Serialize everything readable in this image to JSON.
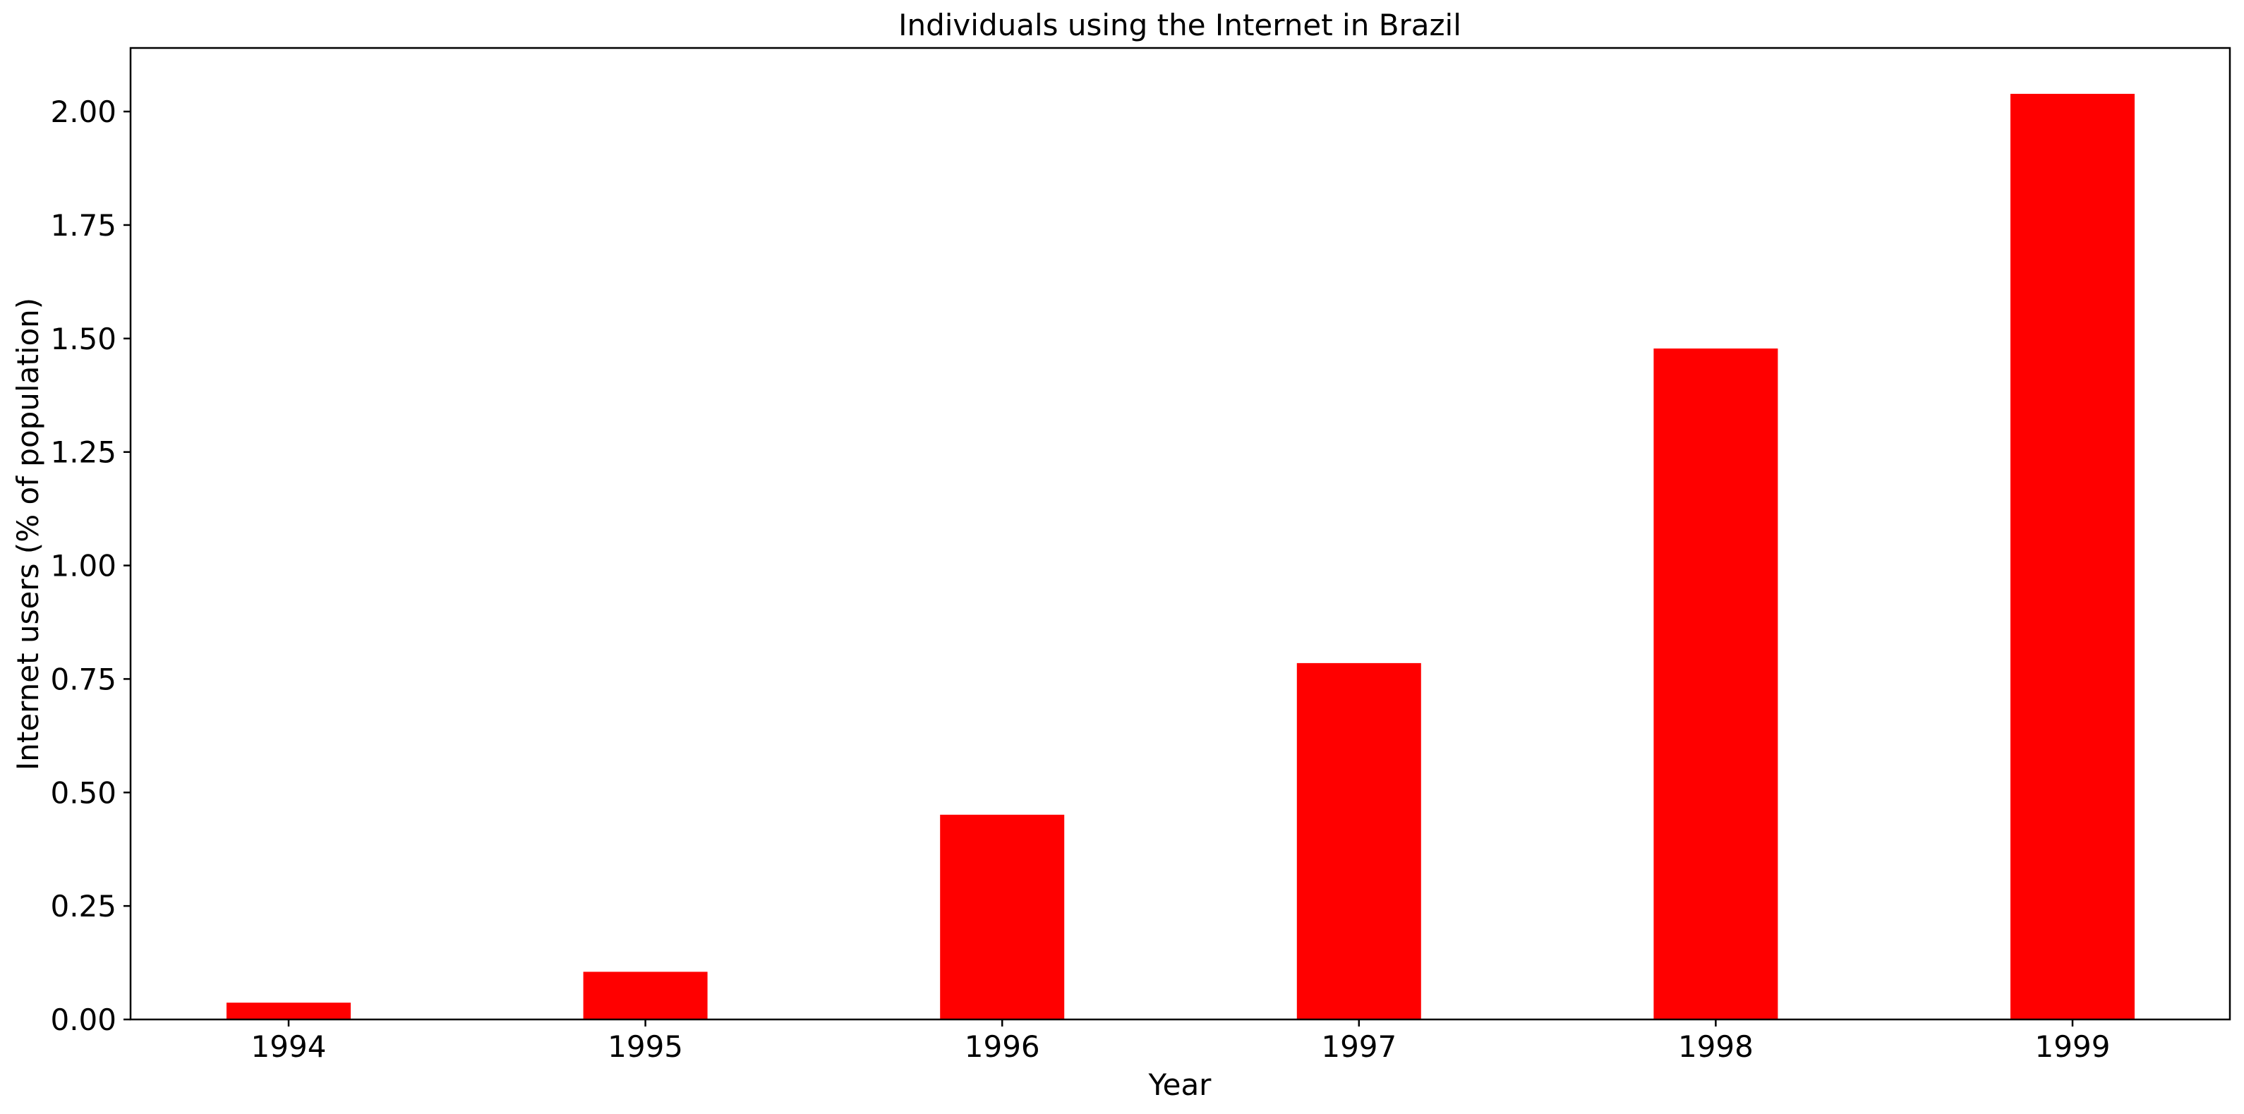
{
  "chart_data": {
    "type": "bar",
    "title": "Individuals using the Internet in Brazil",
    "xlabel": "Year",
    "ylabel": "Internet users (% of population)",
    "categories": [
      "1994",
      "1995",
      "1996",
      "1997",
      "1998",
      "1999"
    ],
    "values": [
      0.037,
      0.105,
      0.451,
      0.785,
      1.478,
      2.039
    ],
    "ylim": [
      0,
      2.14
    ],
    "yticks": [
      "0.00",
      "0.25",
      "0.50",
      "0.75",
      "1.00",
      "1.25",
      "1.50",
      "1.75",
      "2.00"
    ],
    "bar_color": "#ff0000",
    "grid": false,
    "legend": "none"
  }
}
